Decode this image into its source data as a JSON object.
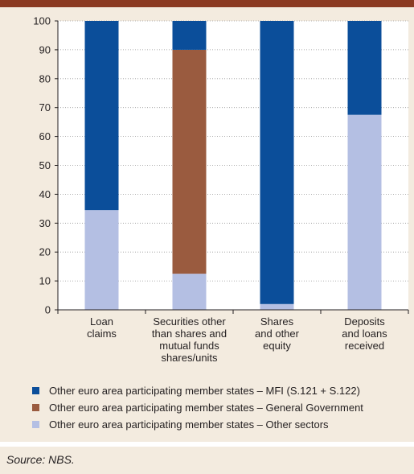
{
  "chart_data": {
    "type": "bar",
    "stacked": true,
    "categories": [
      [
        "Loan",
        "claims"
      ],
      [
        "Securities other",
        "than shares and",
        "mutual funds",
        "shares/units"
      ],
      [
        "Shares",
        "and other",
        "equity"
      ],
      [
        "Deposits",
        "and loans",
        "received"
      ]
    ],
    "series": [
      {
        "name": "Other euro area participating member states – Other sectors",
        "values": [
          34.5,
          12.5,
          2,
          67.5
        ],
        "color": "#b4bfe3"
      },
      {
        "name": "Other euro area participating member states – General Government",
        "values": [
          0,
          77.5,
          0,
          0
        ],
        "color": "#9a5b3f"
      },
      {
        "name": "Other euro area participating member states – MFI (S.121 + S.122)",
        "values": [
          65.5,
          10,
          98,
          32.5
        ],
        "color": "#0b4e9a"
      }
    ],
    "ylim": [
      0,
      100
    ],
    "yticks": [
      0,
      10,
      20,
      30,
      40,
      50,
      60,
      70,
      80,
      90,
      100
    ],
    "grid": true
  },
  "legend": [
    {
      "label": "Other euro area participating member states – MFI (S.121 + S.122)",
      "color": "#0b4e9a"
    },
    {
      "label": "Other euro area participating member states – General Government",
      "color": "#9a5b3f"
    },
    {
      "label": "Other euro area participating member states – Other sectors",
      "color": "#b4bfe3"
    }
  ],
  "source": "Source: NBS."
}
